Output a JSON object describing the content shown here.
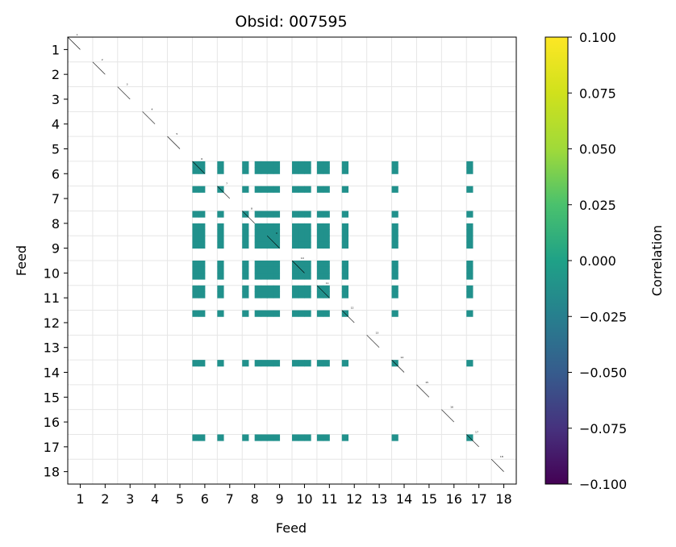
{
  "chart_data": {
    "type": "heatmap",
    "title": "Obsid: 007595",
    "xlabel": "Feed",
    "ylabel": "Feed",
    "feeds": [
      1,
      2,
      3,
      4,
      5,
      6,
      7,
      8,
      9,
      10,
      11,
      12,
      13,
      14,
      15,
      16,
      17,
      18
    ],
    "grid": true,
    "cells_per_feed": 4,
    "active_feeds": [
      6,
      7,
      8,
      9,
      10,
      11,
      12,
      14,
      17
    ],
    "active_subchannels": [
      {
        "feed": 6,
        "sub": [
          0,
          1
        ]
      },
      {
        "feed": 7,
        "sub": [
          0
        ]
      },
      {
        "feed": 8,
        "sub": [
          0,
          2,
          3
        ]
      },
      {
        "feed": 9,
        "sub": [
          0,
          1
        ]
      },
      {
        "feed": 10,
        "sub": [
          0,
          1,
          2
        ]
      },
      {
        "feed": 11,
        "sub": [
          0,
          1
        ]
      },
      {
        "feed": 12,
        "sub": [
          0
        ]
      },
      {
        "feed": 14,
        "sub": [
          0
        ]
      },
      {
        "feed": 17,
        "sub": [
          0
        ]
      }
    ],
    "off_diagonal_value": 0.0,
    "colorbar": {
      "label": "Correlation",
      "vmin": -0.1,
      "vmax": 0.1,
      "ticks": [
        "0.100",
        "0.075",
        "0.050",
        "0.025",
        "0.000",
        "−0.025",
        "−0.050",
        "−0.075",
        "−0.100"
      ],
      "colormap": "viridis"
    },
    "cell_color": "#21918c"
  }
}
